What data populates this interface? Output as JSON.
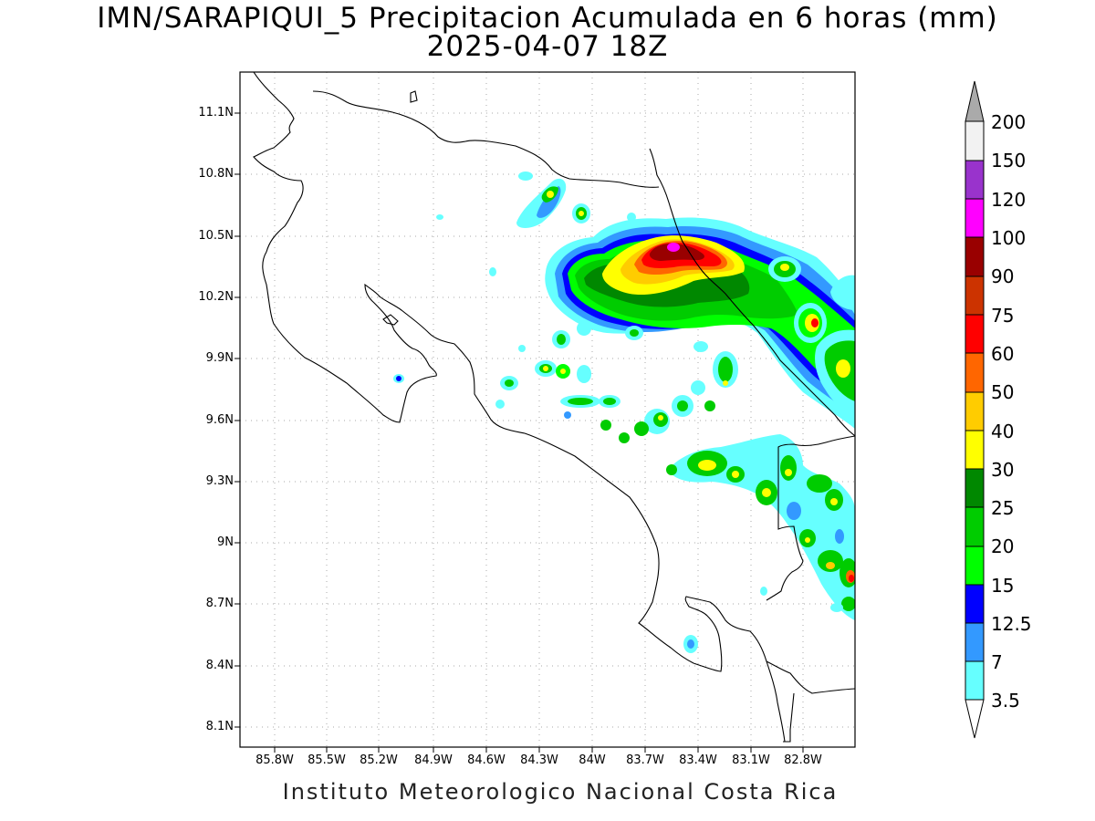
{
  "title": "IMN/SARAPIQUI_5 Precipitacion Acumulada en 6 horas (mm)",
  "subtitle": "2025-04-07 18Z",
  "footer": "Instituto Meteorologico Nacional Costa Rica",
  "map": {
    "lon_range": [
      -86.0,
      -82.63
    ],
    "lat_range": [
      8.0,
      11.3
    ],
    "x_ticks": [
      "85.8W",
      "85.5W",
      "85.2W",
      "84.9W",
      "84.6W",
      "84.3W",
      "84W",
      "83.7W",
      "83.4W",
      "83.1W",
      "82.8W"
    ],
    "y_ticks": [
      "11.1N",
      "10.8N",
      "10.5N",
      "10.2N",
      "9.9N",
      "9.6N",
      "9.3N",
      "9N",
      "8.7N",
      "8.4N",
      "8.1N"
    ],
    "grid": "dotted"
  },
  "colorbar": {
    "labels": [
      "3.5",
      "7",
      "12.5",
      "15",
      "20",
      "25",
      "30",
      "40",
      "50",
      "60",
      "75",
      "90",
      "100",
      "120",
      "150",
      "200"
    ],
    "colors": [
      "#ffffff",
      "#66ffff",
      "#3399ff",
      "#0000ff",
      "#00ff00",
      "#00cc00",
      "#008800",
      "#ffff00",
      "#ffcc00",
      "#ff6600",
      "#ff0000",
      "#cc3300",
      "#990000",
      "#ff00ff",
      "#9933cc",
      "#f2f2f2",
      "#aaaaaa"
    ]
  }
}
